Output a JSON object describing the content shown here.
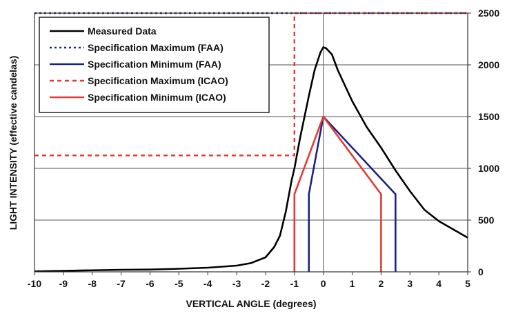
{
  "chart_data": {
    "type": "line",
    "title": "",
    "xlabel": "VERTICAL ANGLE (degrees)",
    "ylabel": "LIGHT INTENSITY (effective candelas)",
    "xlim": [
      -10,
      5
    ],
    "ylim": [
      0,
      2500
    ],
    "x_ticks": [
      "-10",
      "-9",
      "-8",
      "-7",
      "-6",
      "-5",
      "-4",
      "-3",
      "-2",
      "-1",
      "0",
      "1",
      "2",
      "3",
      "4",
      "5"
    ],
    "y_ticks": [
      "0",
      "500",
      "1000",
      "1500",
      "2000",
      "2500"
    ],
    "y_axis_side": "right",
    "grid": "horizontal",
    "legend_placement": "top-left",
    "series": [
      {
        "name": "Measured Data",
        "color": "#000000",
        "style": "solid",
        "points": [
          [
            -10,
            5
          ],
          [
            -9,
            10
          ],
          [
            -8,
            15
          ],
          [
            -7,
            20
          ],
          [
            -6,
            22
          ],
          [
            -5,
            30
          ],
          [
            -4,
            40
          ],
          [
            -3,
            60
          ],
          [
            -2.5,
            85
          ],
          [
            -2,
            140
          ],
          [
            -1.7,
            240
          ],
          [
            -1.5,
            350
          ],
          [
            -1.3,
            580
          ],
          [
            -1.1,
            880
          ],
          [
            -1,
            1000
          ],
          [
            -0.8,
            1300
          ],
          [
            -0.5,
            1700
          ],
          [
            -0.3,
            1950
          ],
          [
            -0.1,
            2120
          ],
          [
            0,
            2170
          ],
          [
            0.1,
            2160
          ],
          [
            0.3,
            2100
          ],
          [
            0.5,
            1950
          ],
          [
            1,
            1650
          ],
          [
            1.5,
            1400
          ],
          [
            2,
            1200
          ],
          [
            2.5,
            980
          ],
          [
            3,
            780
          ],
          [
            3.5,
            600
          ],
          [
            4,
            490
          ],
          [
            4.5,
            410
          ],
          [
            5,
            330
          ]
        ]
      },
      {
        "name": "Specification Maximum (FAA)",
        "color": "#1a237e",
        "style": "dotted",
        "points": [
          [
            -10,
            2500
          ],
          [
            5,
            2500
          ]
        ]
      },
      {
        "name": "Specification Minimum (FAA)",
        "color": "#1a237e",
        "style": "solid",
        "points": [
          [
            -0.5,
            0
          ],
          [
            -0.5,
            750
          ],
          [
            0,
            1500
          ],
          [
            2.5,
            750
          ],
          [
            2.5,
            0
          ]
        ]
      },
      {
        "name": "Specification Maximum (ICAO)",
        "color": "#e53935",
        "style": "dashed",
        "points": [
          [
            -10,
            1125
          ],
          [
            -1,
            1125
          ],
          [
            -1,
            2500
          ],
          [
            5,
            2500
          ]
        ]
      },
      {
        "name": "Specification Minimum (ICAO)",
        "color": "#e53935",
        "style": "solid",
        "points": [
          [
            -1,
            0
          ],
          [
            -1,
            750
          ],
          [
            0,
            1500
          ],
          [
            2,
            750
          ],
          [
            2,
            0
          ]
        ]
      }
    ]
  }
}
